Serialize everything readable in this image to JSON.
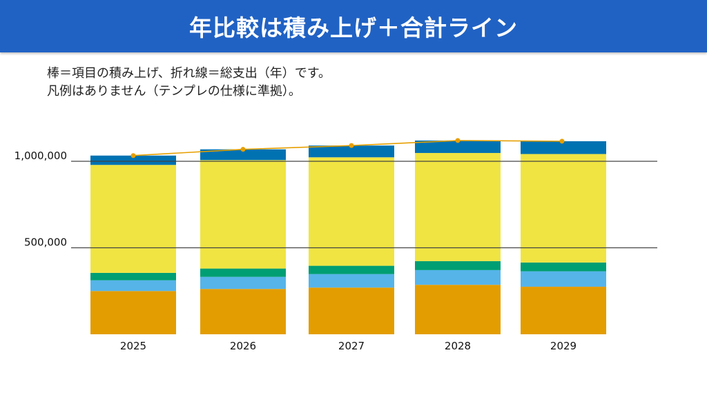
{
  "slide": {
    "title": "年比較は積み上げ＋合計ライン",
    "description": [
      "棒＝項目の積み上げ、折れ線＝総支出（年）です。",
      "凡例はありません（テンプレの仕様に準拠）。"
    ]
  },
  "chart_data": {
    "type": "bar",
    "stacked": true,
    "categories": [
      "2025",
      "2026",
      "2027",
      "2028",
      "2029"
    ],
    "series": [
      {
        "values": [
          250000,
          262000,
          270000,
          286000,
          275000
        ],
        "color": "#e39d00"
      },
      {
        "values": [
          62000,
          70000,
          78000,
          85000,
          89000
        ],
        "color": "#56b4e9"
      },
      {
        "values": [
          43000,
          48000,
          48000,
          52000,
          51000
        ],
        "color": "#009e73"
      },
      {
        "values": [
          624000,
          627000,
          627000,
          625000,
          627000
        ],
        "color": "#f0e442"
      },
      {
        "values": [
          54000,
          62000,
          68000,
          72000,
          74000
        ],
        "color": "#0072b2"
      }
    ],
    "line": {
      "type": "line",
      "values": [
        1033000,
        1069000,
        1091000,
        1120000,
        1116000
      ],
      "color": "#e69f00"
    },
    "yticks": [
      500000,
      1000000
    ],
    "ytick_labels": [
      "500,000",
      "1,000,000"
    ],
    "ylim": [
      0,
      1200000
    ],
    "grid": true,
    "legend": "none"
  }
}
